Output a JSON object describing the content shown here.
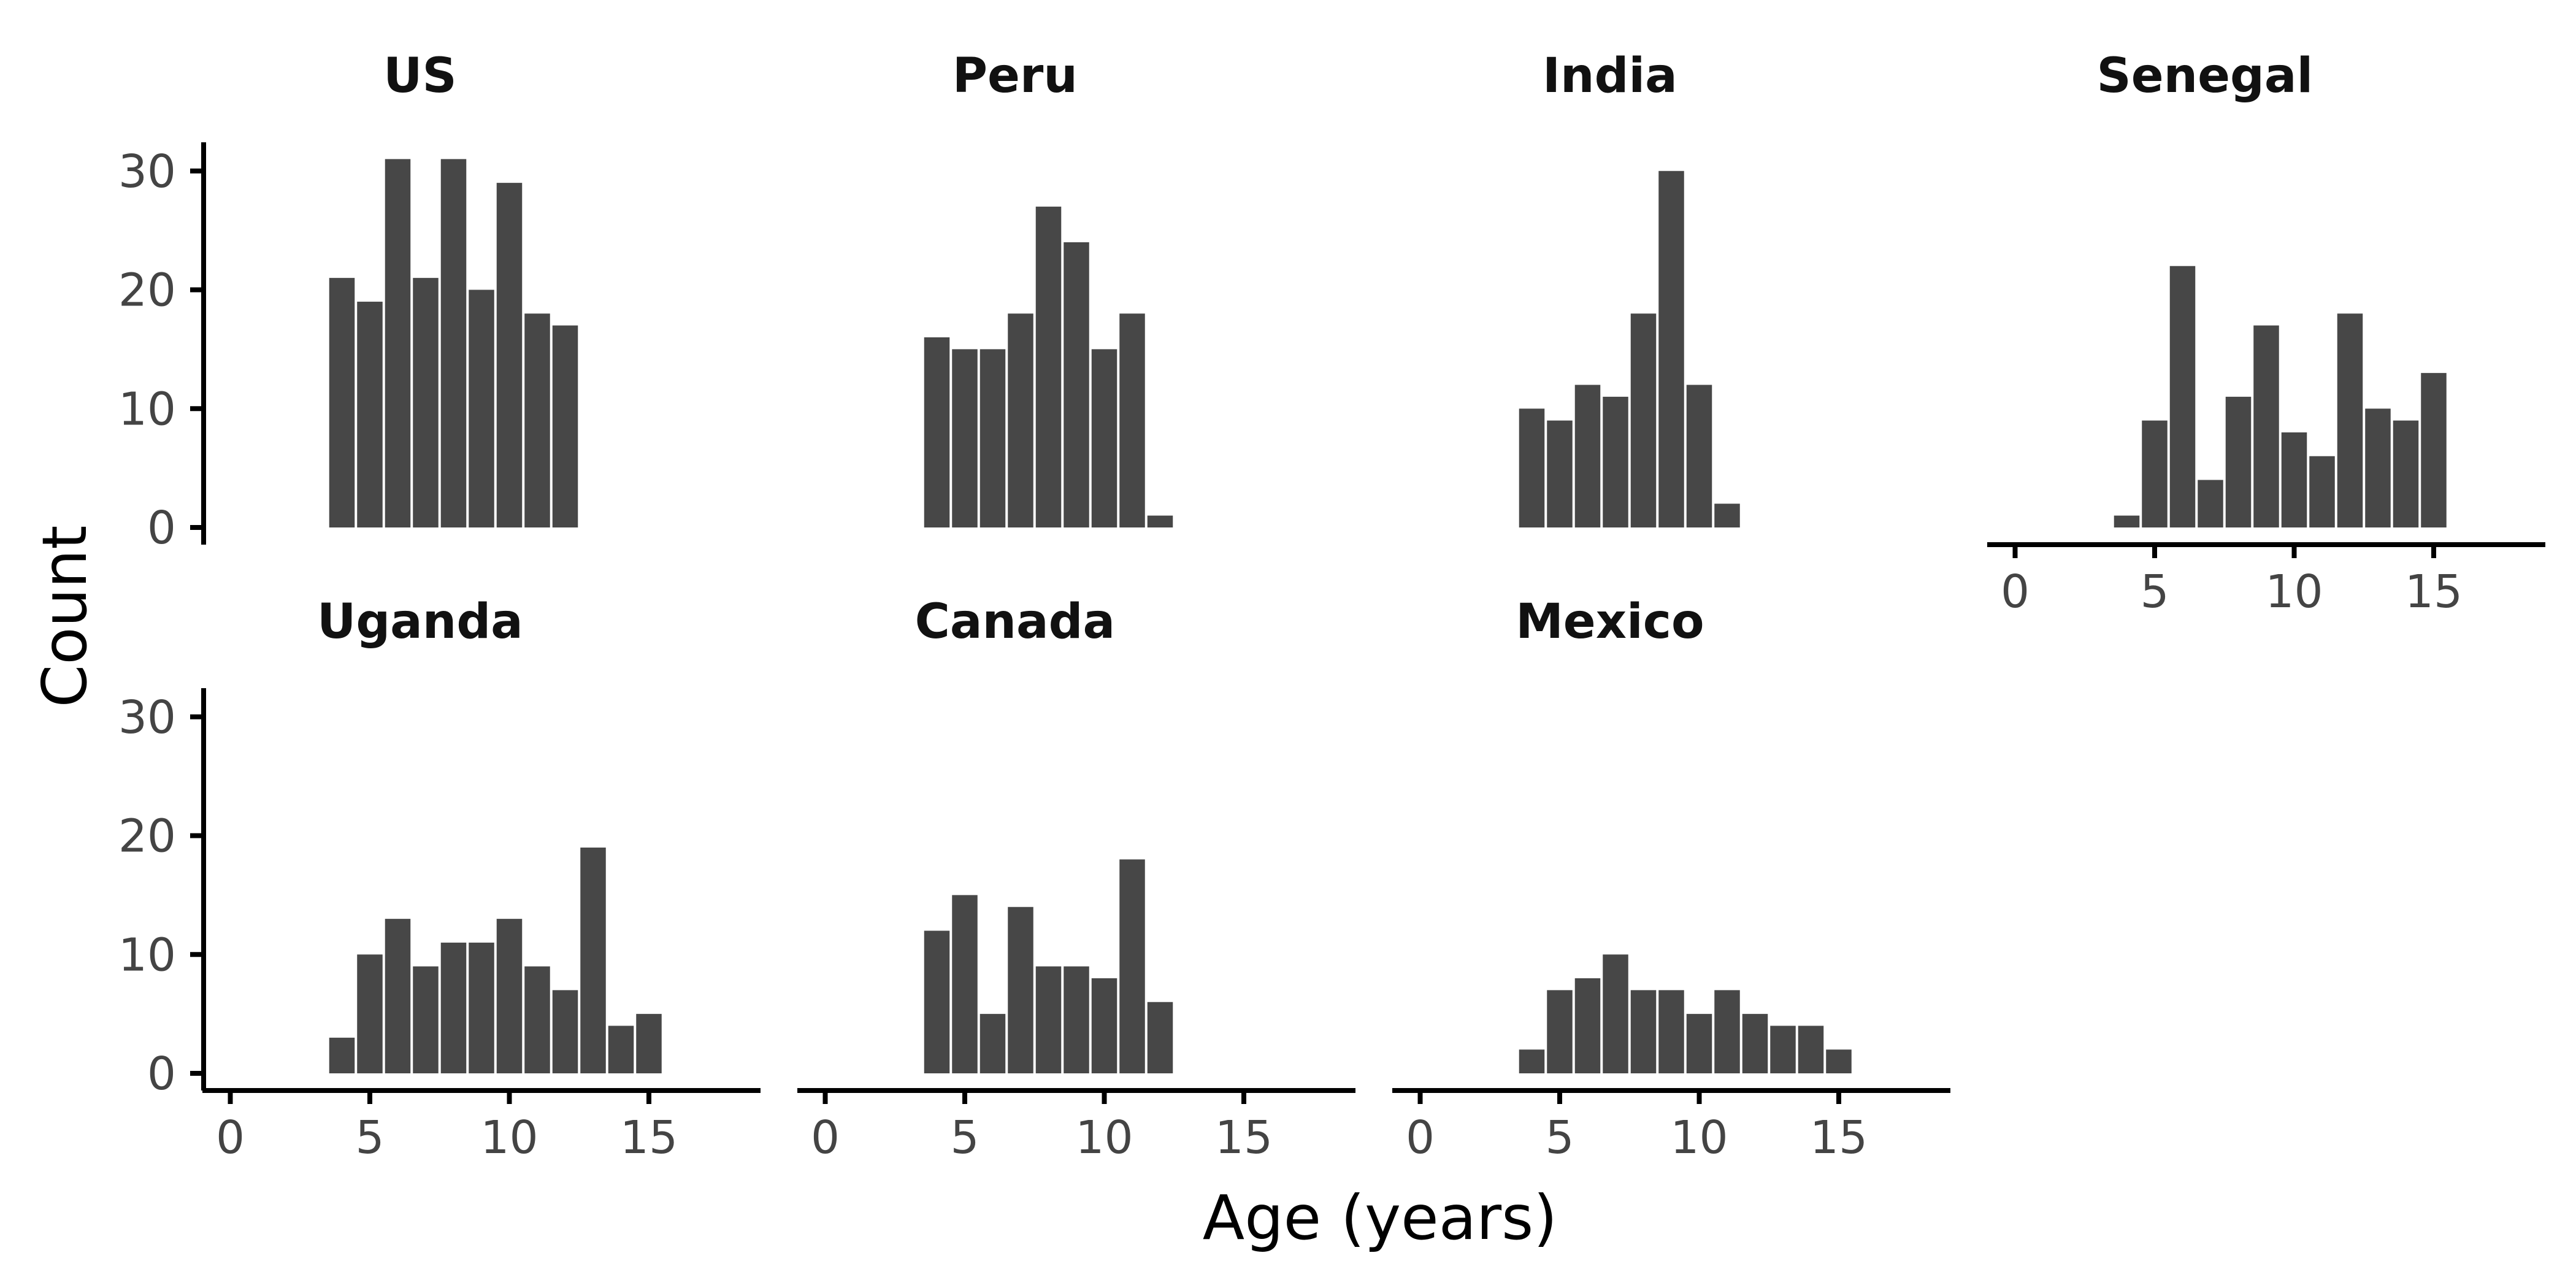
{
  "chart_data": {
    "type": "bar",
    "subtype": "faceted-histogram",
    "xlabel": "Age (years)",
    "ylabel": "Count",
    "xlim": [
      -1,
      19
    ],
    "ylim": [
      0,
      32
    ],
    "xticks": [
      0,
      5,
      10,
      15
    ],
    "yticks": [
      0,
      10,
      20,
      30
    ],
    "bin_width": 1,
    "bar_color": "#474747",
    "grid": false,
    "legend": "none",
    "facets": [
      {
        "name": "US",
        "bins": [
          4,
          5,
          6,
          7,
          8,
          9,
          10,
          11,
          12
        ],
        "counts": [
          21,
          19,
          31,
          21,
          31,
          20,
          29,
          18,
          17
        ]
      },
      {
        "name": "Peru",
        "bins": [
          4,
          5,
          6,
          7,
          8,
          9,
          10,
          11,
          12
        ],
        "counts": [
          16,
          15,
          15,
          18,
          27,
          24,
          15,
          18,
          1
        ]
      },
      {
        "name": "India",
        "bins": [
          4,
          5,
          6,
          7,
          8,
          9,
          10,
          11
        ],
        "counts": [
          10,
          9,
          12,
          11,
          18,
          30,
          12,
          2
        ]
      },
      {
        "name": "Senegal",
        "bins": [
          4,
          5,
          6,
          7,
          8,
          9,
          10,
          11,
          12,
          13,
          14,
          15
        ],
        "counts": [
          1,
          9,
          22,
          4,
          11,
          17,
          8,
          6,
          18,
          10,
          9,
          13
        ]
      },
      {
        "name": "Uganda",
        "bins": [
          4,
          5,
          6,
          7,
          8,
          9,
          10,
          11,
          12,
          13,
          14,
          15
        ],
        "counts": [
          3,
          10,
          13,
          9,
          11,
          11,
          13,
          9,
          7,
          19,
          4,
          5
        ]
      },
      {
        "name": "Canada",
        "bins": [
          4,
          5,
          6,
          7,
          8,
          9,
          10,
          11,
          12
        ],
        "counts": [
          12,
          15,
          5,
          14,
          9,
          9,
          8,
          18,
          6
        ]
      },
      {
        "name": "Mexico",
        "bins": [
          4,
          5,
          6,
          7,
          8,
          9,
          10,
          11,
          12,
          13,
          14,
          15
        ],
        "counts": [
          2,
          7,
          8,
          10,
          7,
          7,
          5,
          7,
          5,
          4,
          4,
          2
        ]
      }
    ]
  }
}
